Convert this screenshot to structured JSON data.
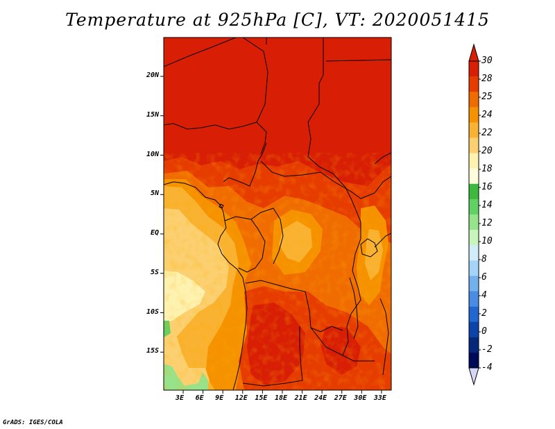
{
  "title": "Temperature at 925hPa [C], VT: 2020051415",
  "footer": "GrADS: IGES/COLA",
  "lat_ticks": [
    {
      "value": 20,
      "label": "20N"
    },
    {
      "value": 15,
      "label": "15N"
    },
    {
      "value": 10,
      "label": "10N"
    },
    {
      "value": 5,
      "label": "5N"
    },
    {
      "value": 0,
      "label": "EQ"
    },
    {
      "value": -5,
      "label": "5S"
    },
    {
      "value": -10,
      "label": "10S"
    },
    {
      "value": -15,
      "label": "15S"
    }
  ],
  "lon_ticks": [
    {
      "value": 3,
      "label": "3E"
    },
    {
      "value": 6,
      "label": "6E"
    },
    {
      "value": 9,
      "label": "9E"
    },
    {
      "value": 12,
      "label": "12E"
    },
    {
      "value": 15,
      "label": "15E"
    },
    {
      "value": 18,
      "label": "18E"
    },
    {
      "value": 21,
      "label": "21E"
    },
    {
      "value": 24,
      "label": "24E"
    },
    {
      "value": 27,
      "label": "27E"
    },
    {
      "value": 30,
      "label": "30E"
    },
    {
      "value": 33,
      "label": "33E"
    }
  ],
  "colorbar": {
    "levels": [
      "30",
      "28",
      "25",
      "24",
      "22",
      "20",
      "18",
      "16",
      "14",
      "12",
      "10",
      "8",
      "6",
      "4",
      "2",
      "0",
      "-2",
      "-4"
    ],
    "colors": [
      "#d81e05",
      "#e63c00",
      "#f06c00",
      "#f69200",
      "#fab232",
      "#fcd070",
      "#fef2b0",
      "#fffbdc",
      "#3cba40",
      "#62d164",
      "#96e38c",
      "#c8f5bc",
      "#d2ecfc",
      "#a4d4f8",
      "#72b0ee",
      "#4a8ce4",
      "#2266d0",
      "#0c44aa",
      "#06287a",
      "#000a5a"
    ],
    "top_arrow_color": "#d81e05",
    "bottom_arrow_color": "#d6d6f6"
  }
}
